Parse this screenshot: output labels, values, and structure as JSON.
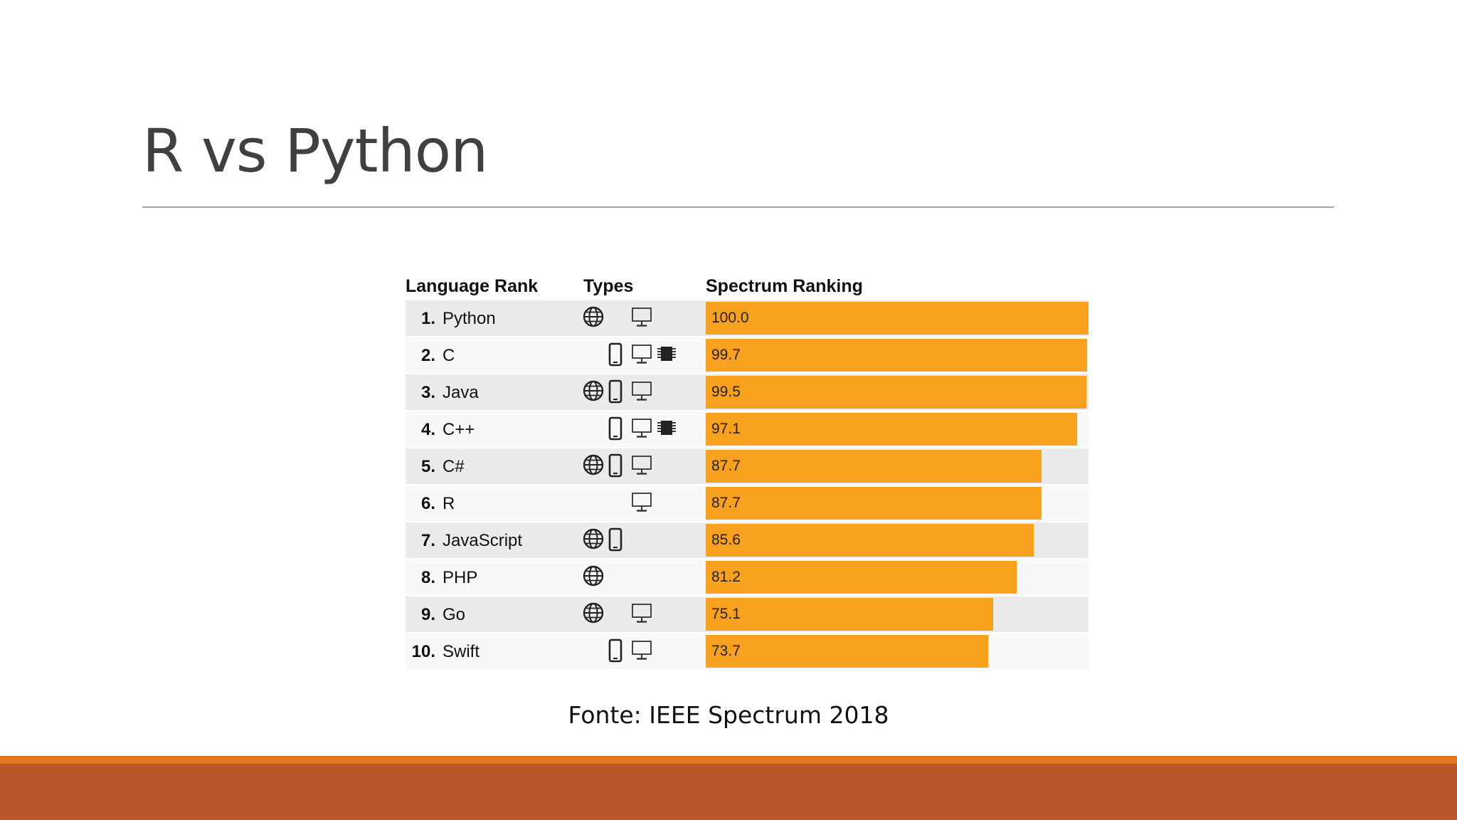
{
  "slide": {
    "title": "R vs Python",
    "source": "Fonte: IEEE Spectrum 2018"
  },
  "colors": {
    "bar": "#f8a11f",
    "footer_top": "#e0761d",
    "footer": "#bb562a"
  },
  "chart_data": {
    "type": "bar",
    "orientation": "horizontal",
    "title": "",
    "headers": [
      "Language Rank",
      "Types",
      "Spectrum Ranking"
    ],
    "xlim": [
      0,
      100
    ],
    "rows": [
      {
        "rank": "1.",
        "language": "Python",
        "value": 100.0,
        "label": "100.0",
        "types": [
          "web-icon",
          "desktop-icon"
        ]
      },
      {
        "rank": "2.",
        "language": "C",
        "value": 99.7,
        "label": "99.7",
        "types": [
          "mobile-icon",
          "desktop-icon",
          "embedded-icon"
        ]
      },
      {
        "rank": "3.",
        "language": "Java",
        "value": 99.5,
        "label": "99.5",
        "types": [
          "web-icon",
          "mobile-icon",
          "desktop-icon"
        ]
      },
      {
        "rank": "4.",
        "language": "C++",
        "value": 97.1,
        "label": "97.1",
        "types": [
          "mobile-icon",
          "desktop-icon",
          "embedded-icon"
        ]
      },
      {
        "rank": "5.",
        "language": "C#",
        "value": 87.7,
        "label": "87.7",
        "types": [
          "web-icon",
          "mobile-icon",
          "desktop-icon"
        ]
      },
      {
        "rank": "6.",
        "language": "R",
        "value": 87.7,
        "label": "87.7",
        "types": [
          "desktop-icon"
        ]
      },
      {
        "rank": "7.",
        "language": "JavaScript",
        "value": 85.6,
        "label": "85.6",
        "types": [
          "web-icon",
          "mobile-icon"
        ]
      },
      {
        "rank": "8.",
        "language": "PHP",
        "value": 81.2,
        "label": "81.2",
        "types": [
          "web-icon"
        ]
      },
      {
        "rank": "9.",
        "language": "Go",
        "value": 75.1,
        "label": "75.1",
        "types": [
          "web-icon",
          "desktop-icon"
        ]
      },
      {
        "rank": "10.",
        "language": "Swift",
        "value": 73.7,
        "label": "73.7",
        "types": [
          "mobile-icon",
          "desktop-icon"
        ]
      }
    ]
  }
}
